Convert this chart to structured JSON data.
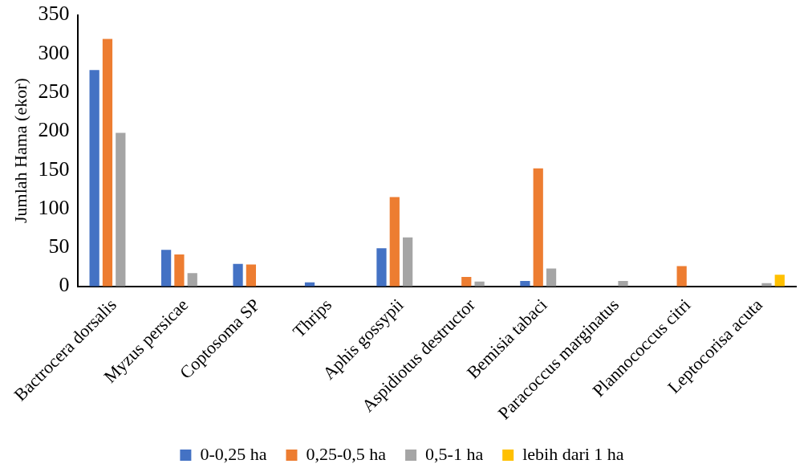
{
  "chart_data": {
    "type": "bar",
    "ylabel": "Jumlah Hama (ekor)",
    "categories": [
      "Bactrocera dorsalis",
      "Myzus persicae",
      "Coptosoma SP",
      "Thrips",
      "Aphis gossypii",
      "Aspidiotus destructor",
      "Bemisia tabaci",
      "Paracoccus marginatus",
      "Plannococcus citri",
      "Leptocorisa acuta"
    ],
    "series": [
      {
        "name": "0-0,25 ha",
        "color": "#4472c4",
        "values": [
          279,
          47,
          29,
          5,
          49,
          0,
          7,
          0,
          0,
          0
        ]
      },
      {
        "name": "0,25-0,5 ha",
        "color": "#ed7d31",
        "values": [
          319,
          41,
          28,
          0,
          115,
          12,
          152,
          0,
          26,
          0
        ]
      },
      {
        "name": "0,5-1 ha",
        "color": "#a5a5a5",
        "values": [
          198,
          17,
          0,
          0,
          63,
          6,
          23,
          7,
          0,
          4
        ]
      },
      {
        "name": "lebih dari 1 ha",
        "color": "#ffc000",
        "values": [
          0,
          0,
          0,
          0,
          0,
          0,
          0,
          0,
          0,
          15
        ]
      }
    ],
    "ylim": [
      0,
      350
    ],
    "yticks": [
      0,
      50,
      100,
      150,
      200,
      250,
      300,
      350
    ],
    "grid": false,
    "legend": "bottom"
  }
}
